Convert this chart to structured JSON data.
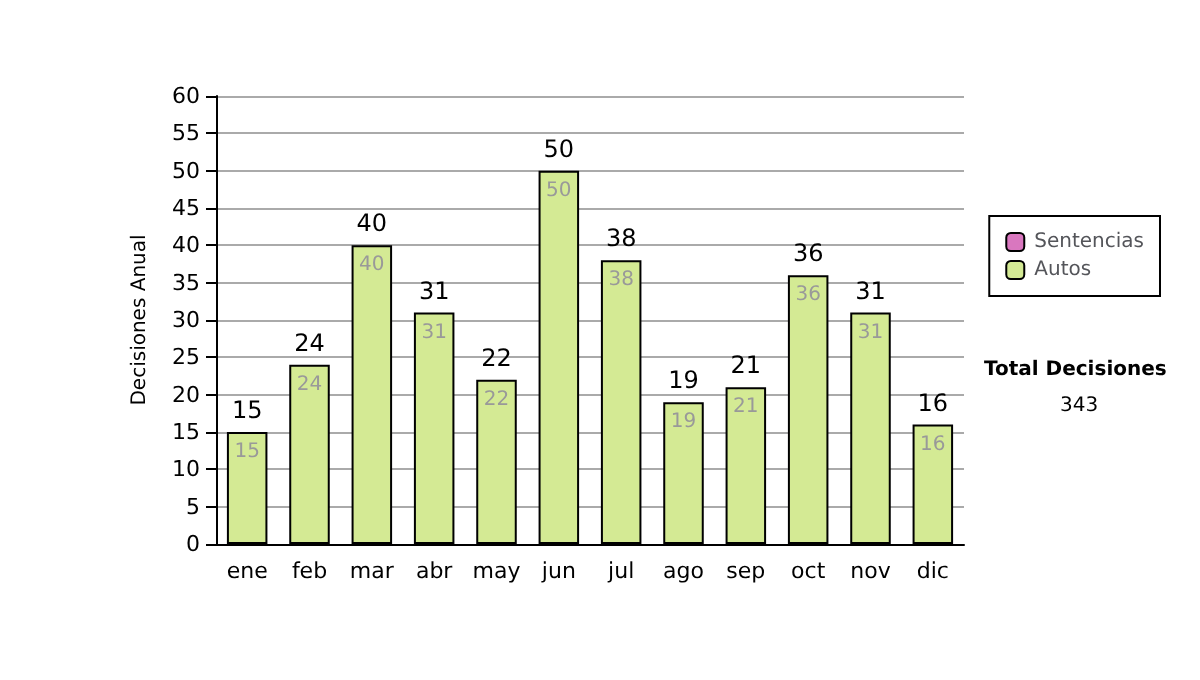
{
  "chart_data": {
    "type": "bar",
    "ylabel": "Decisiones Anual",
    "categories": [
      "ene",
      "feb",
      "mar",
      "abr",
      "may",
      "jun",
      "jul",
      "ago",
      "sep",
      "oct",
      "nov",
      "dic"
    ],
    "series": [
      {
        "name": "Autos",
        "color": "#d4ea94",
        "values": [
          15,
          24,
          40,
          31,
          22,
          50,
          38,
          19,
          21,
          36,
          31,
          16
        ],
        "value_labels": [
          "15",
          "24",
          "40",
          "31",
          "22",
          "50",
          "38",
          "19",
          "21",
          "36",
          "31",
          "16"
        ]
      },
      {
        "name": "Sentencias",
        "color": "#d977bf",
        "values": [
          0,
          0,
          0,
          0,
          0,
          0,
          0,
          0,
          0,
          0,
          0,
          0
        ]
      }
    ],
    "stacked": true,
    "totals": [
      "15",
      "24",
      "40",
      "31",
      "22",
      "50",
      "38",
      "19",
      "21",
      "36",
      "31",
      "16"
    ],
    "ylim": [
      0,
      60
    ],
    "yticks": [
      0,
      5,
      10,
      15,
      20,
      25,
      30,
      35,
      40,
      45,
      50,
      55,
      60
    ],
    "grid": "y",
    "legend": "right",
    "annotations": [
      "Total Decisiones",
      "343"
    ]
  }
}
